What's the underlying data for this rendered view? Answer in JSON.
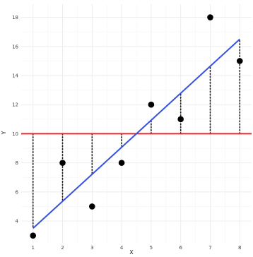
{
  "chart_data": {
    "type": "scatter",
    "title": "",
    "xlabel": "X",
    "ylabel": "Y",
    "xlim": [
      0.6,
      8.4
    ],
    "ylim": [
      2.5,
      18.9
    ],
    "x_ticks": [
      1,
      2,
      3,
      4,
      5,
      6,
      7,
      8
    ],
    "y_ticks": [
      4,
      6,
      8,
      10,
      12,
      14,
      16,
      18
    ],
    "grid": true,
    "legend": "none",
    "points": [
      {
        "x": 1,
        "y": 3
      },
      {
        "x": 2,
        "y": 8
      },
      {
        "x": 3,
        "y": 5
      },
      {
        "x": 4,
        "y": 8
      },
      {
        "x": 5,
        "y": 12
      },
      {
        "x": 6,
        "y": 11
      },
      {
        "x": 7,
        "y": 18
      },
      {
        "x": 8,
        "y": 15
      }
    ],
    "mean_line": {
      "y": 10,
      "color": "#e8262b"
    },
    "regression_line": {
      "x_start": 1,
      "y_start": 3.5,
      "x_end": 8,
      "y_end": 16.5,
      "color": "#3653e0"
    },
    "residual_segments": [
      {
        "x": 1,
        "y_from": 10,
        "y_to": 3.5
      },
      {
        "x": 2,
        "y_from": 10,
        "y_to": 5.36
      },
      {
        "x": 3,
        "y_from": 10,
        "y_to": 7.21
      },
      {
        "x": 4,
        "y_from": 10,
        "y_to": 9.07
      },
      {
        "x": 5,
        "y_from": 10,
        "y_to": 10.93
      },
      {
        "x": 6,
        "y_from": 10,
        "y_to": 12.79
      },
      {
        "x": 7,
        "y_from": 10,
        "y_to": 14.64
      },
      {
        "x": 8,
        "y_from": 10,
        "y_to": 16.5
      }
    ],
    "colors": {
      "panel_background": "#ffffff",
      "grid_major": "#ebebeb",
      "grid_minor": "#f5f5f5",
      "points": "#000000",
      "residuals": "#222222"
    }
  }
}
